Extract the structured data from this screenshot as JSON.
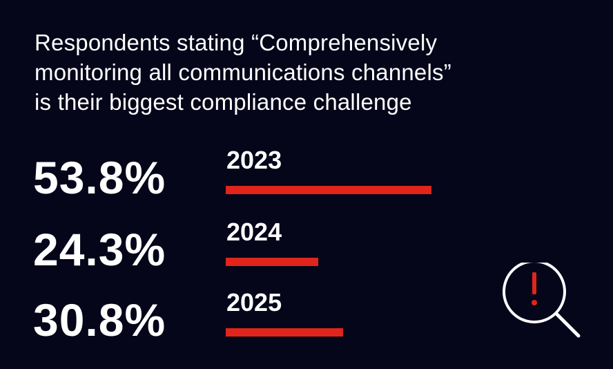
{
  "title_lines": [
    "Respondents stating “Comprehensively",
    "monitoring all communications channels”",
    "is their biggest compliance challenge"
  ],
  "colors": {
    "background": "#06061a",
    "text": "#ffffff",
    "bar": "#e1251b"
  },
  "icon": "magnifier-exclamation-icon",
  "chart_data": {
    "type": "bar",
    "orientation": "horizontal",
    "title": "Respondents stating “Comprehensively monitoring all communications channels” is their biggest compliance challenge",
    "categories": [
      "2023",
      "2024",
      "2025"
    ],
    "values": [
      53.8,
      24.3,
      30.8
    ],
    "value_labels": [
      "53.8%",
      "24.3%",
      "30.8%"
    ],
    "unit": "%",
    "xlim": [
      0,
      100
    ],
    "grid": false,
    "legend": "none"
  }
}
